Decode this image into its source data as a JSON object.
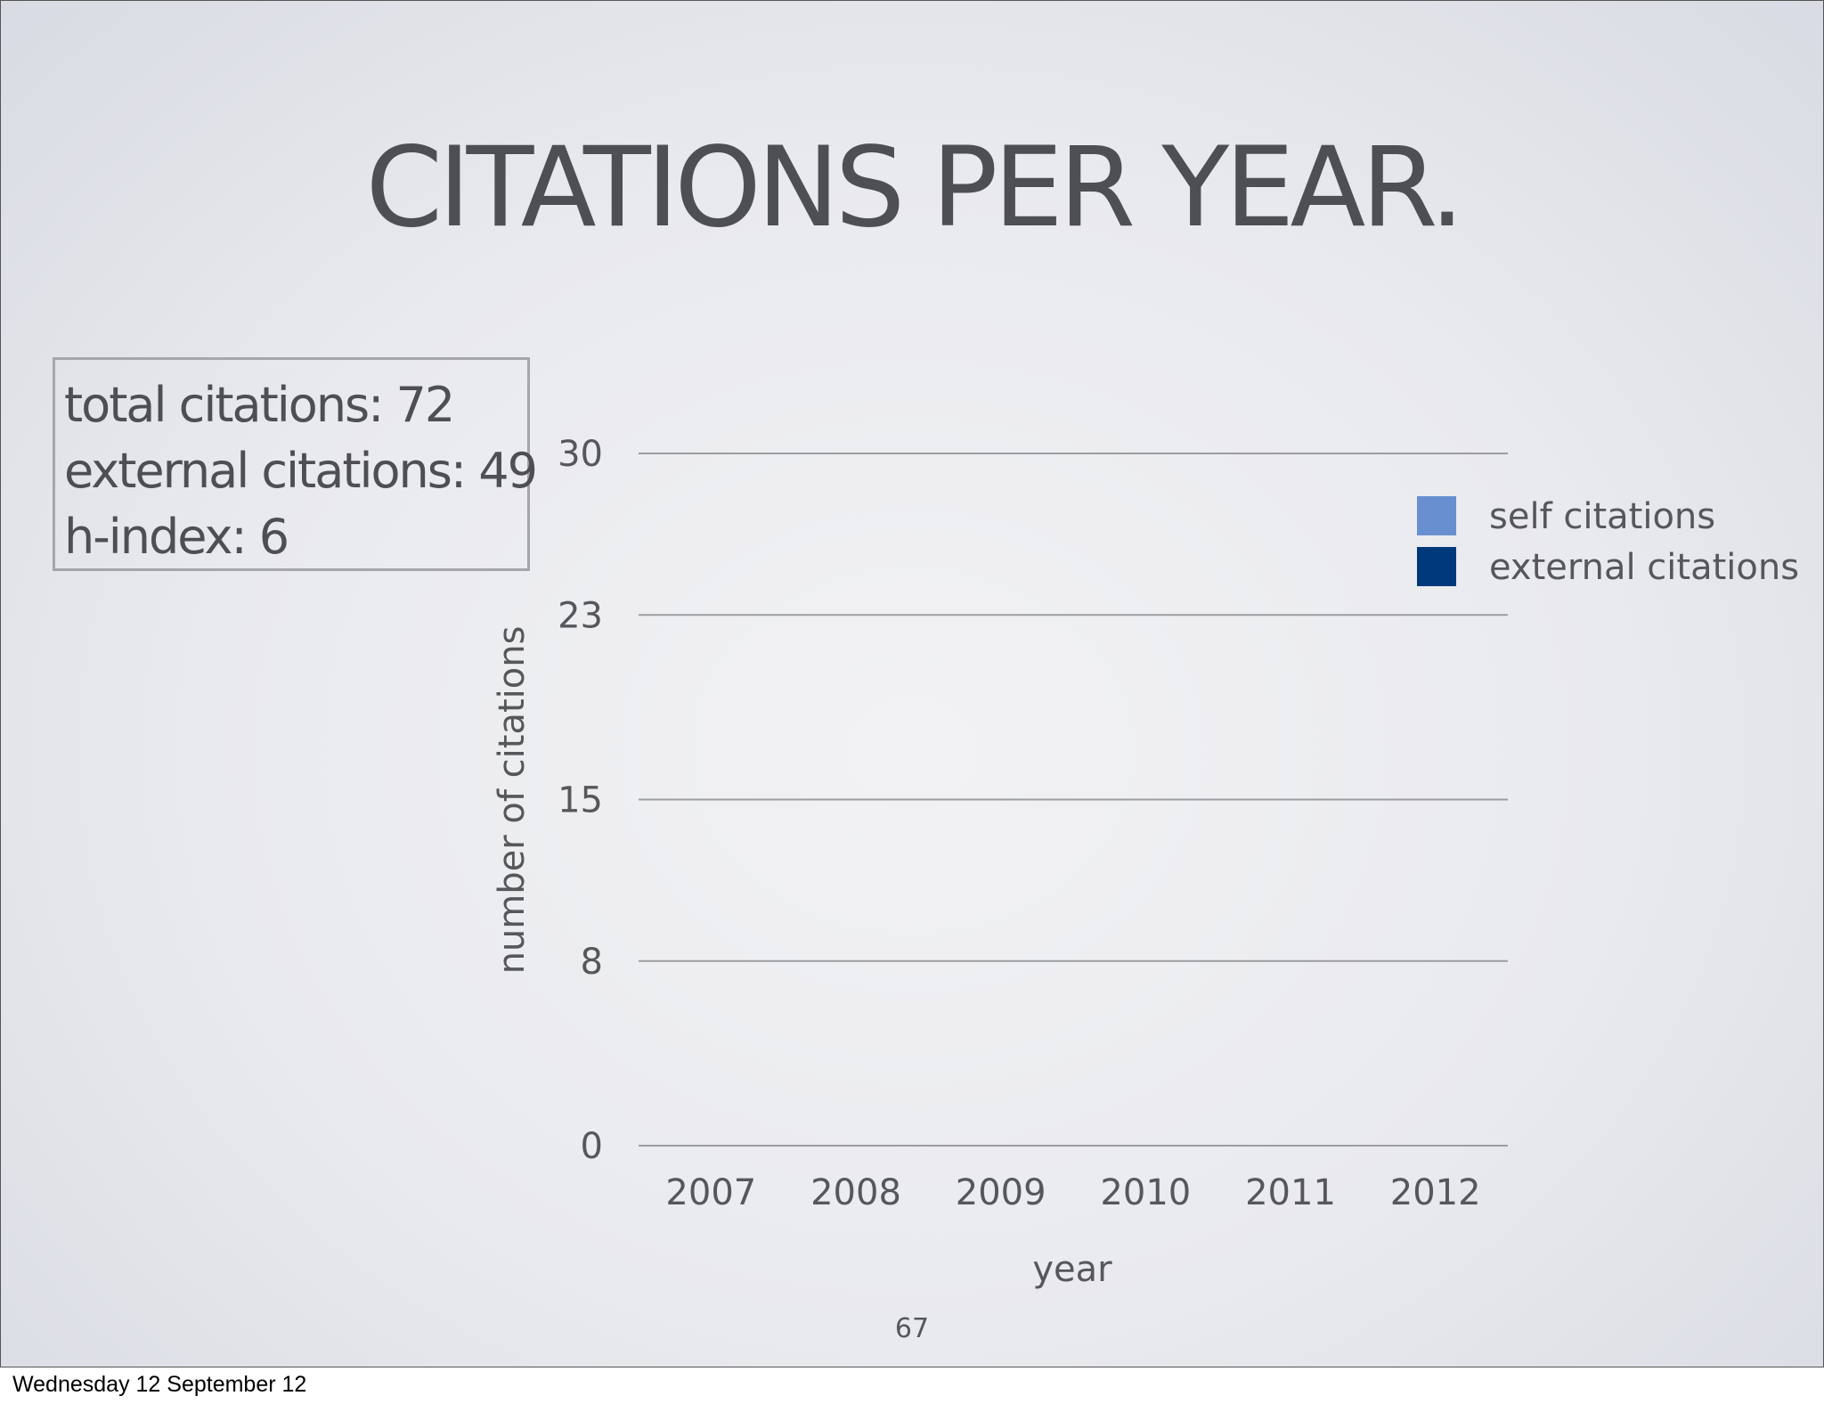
{
  "slide": {
    "title": "CITATIONS PER YEAR.",
    "page_number": "67",
    "stats": [
      "total citations: 72",
      "external citations: 49",
      "h-index: 6"
    ]
  },
  "footer": {
    "date_text": "Wednesday 12 September 12"
  },
  "chart_data": {
    "type": "bar",
    "stacked": true,
    "categories": [
      "2007",
      "2008",
      "2009",
      "2010",
      "2011",
      "2012"
    ],
    "series": [
      {
        "name": "self citations",
        "color": "#6890d0",
        "values": [
          null,
          null,
          null,
          null,
          null,
          null
        ]
      },
      {
        "name": "external citations",
        "color": "#003a7a",
        "values": [
          null,
          null,
          null,
          null,
          null,
          null
        ]
      }
    ],
    "yticks": [
      0,
      8,
      15,
      23,
      30
    ],
    "ylim": [
      0,
      30
    ],
    "xlabel": "year",
    "ylabel": "number of citations",
    "grid": true,
    "legend_position": "top-right"
  }
}
